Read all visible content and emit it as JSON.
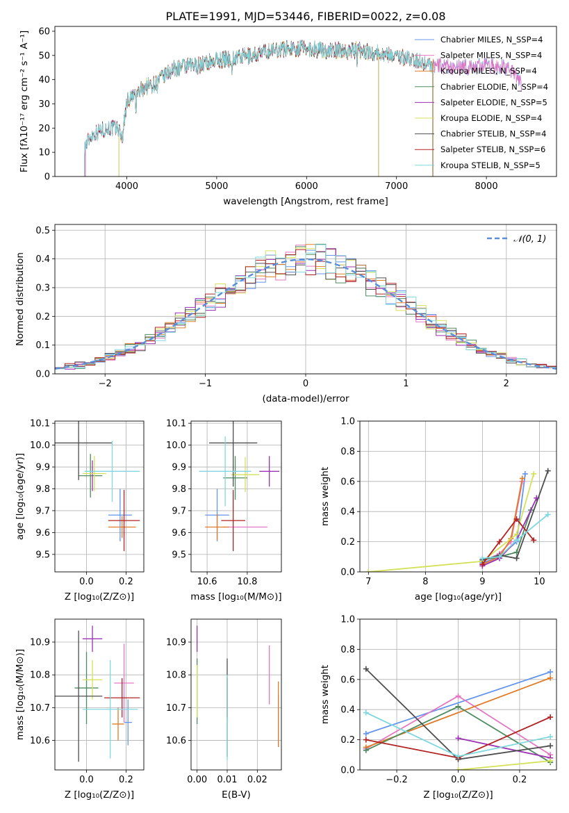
{
  "figure_title": "PLATE=1991, MJD=53446, FIBERID=0022, z=0.08",
  "model_colors": [
    "#6495ED",
    "#E377C2",
    "#E07B27",
    "#4E8B5F",
    "#9B30B5",
    "#D4E157",
    "#4D4D4D",
    "#B22222",
    "#7FD8DE"
  ],
  "chart_data": [
    {
      "id": "spectrum",
      "type": "line",
      "title": "PLATE=1991, MJD=53446, FIBERID=0022, z=0.08",
      "xlabel": "wavelength [Angstrom, rest frame]",
      "ylabel": "Flux [fλ10⁻¹⁷ erg cm⁻² s⁻¹ A⁻¹]",
      "xlim": [
        3200,
        8780
      ],
      "ylim": [
        0,
        62
      ],
      "xticks": [
        "4000",
        "5000",
        "6000",
        "7000",
        "8000"
      ],
      "yticks": [
        "0",
        "10",
        "20",
        "30",
        "40",
        "50",
        "60"
      ],
      "xtick_values": [
        4000,
        5000,
        6000,
        7000,
        8000
      ],
      "ytick_values": [
        0,
        10,
        20,
        30,
        40,
        50,
        60
      ],
      "grid": false,
      "legend_position": "top-right",
      "continuum": {
        "wavelength": [
          3530,
          3600,
          3700,
          3800,
          3900,
          3950,
          4000,
          4100,
          4200,
          4300,
          4400,
          4500,
          4600,
          4800,
          5000,
          5200,
          5400,
          5600,
          5800,
          6000,
          6200,
          6400,
          6600,
          6800,
          7000,
          7200,
          7400,
          7600,
          7800,
          8000,
          8200,
          8300,
          8390
        ],
        "flux": [
          12,
          17,
          19,
          20,
          20,
          16,
          31,
          34,
          37,
          38,
          41,
          44,
          45,
          46,
          48,
          49,
          50,
          52,
          53,
          53,
          52,
          52,
          52,
          51,
          50,
          48,
          46,
          45,
          45,
          46,
          45,
          43,
          38
        ]
      },
      "series": [
        {
          "name": "Chabrier MILES, N_SSP=4",
          "start": 3540,
          "end": 8390
        },
        {
          "name": "Salpeter MILES, N_SSP=4",
          "start": 3540,
          "end": 8390
        },
        {
          "name": "Kroupa MILES, N_SSP=4",
          "start": 3910,
          "end": 7410
        },
        {
          "name": "Chabrier ELODIE, N_SSP=4",
          "start": 3910,
          "end": 6800
        },
        {
          "name": "Salpeter ELODIE, N_SSP=5",
          "start": 3910,
          "end": 6800
        },
        {
          "name": "Kroupa ELODIE, N_SSP=4",
          "start": 3910,
          "end": 6800
        },
        {
          "name": "Chabrier STELIB, N_SSP=4",
          "start": 3530,
          "end": 7400
        },
        {
          "name": "Salpeter STELIB, N_SSP=6",
          "start": 3530,
          "end": 7400
        },
        {
          "name": "Kroupa STELIB, N_SSP=5",
          "start": 3530,
          "end": 7400
        }
      ]
    },
    {
      "id": "residuals",
      "type": "line",
      "xlabel": "(data-model)/error",
      "ylabel": "Normed distribution",
      "xlim": [
        -2.5,
        2.5
      ],
      "ylim": [
        0,
        0.52
      ],
      "xticks": [
        "−2",
        "−1",
        "0",
        "1",
        "2"
      ],
      "yticks": [
        "0.0",
        "0.1",
        "0.2",
        "0.3",
        "0.4",
        "0.5"
      ],
      "xtick_values": [
        -2,
        -1,
        0,
        1,
        2
      ],
      "ytick_values": [
        0,
        0.1,
        0.2,
        0.3,
        0.4,
        0.5
      ],
      "grid": true,
      "legend_position": "top-right",
      "legend": "𝒩(0, 1)",
      "bin_width": 0.1,
      "series_count": 9
    },
    {
      "id": "age-vs-Z",
      "type": "scatter",
      "xlabel": "Z [log₁₀(Z/Z⊙)]",
      "ylabel": "age  [log₁₀(age/yr)]",
      "xlim": [
        -0.16,
        0.29
      ],
      "ylim": [
        9.42,
        10.11
      ],
      "xticks": [
        "0.0",
        "0.2"
      ],
      "yticks": [
        "9.5",
        "9.6",
        "9.7",
        "9.8",
        "9.9",
        "10.0",
        "10.1"
      ],
      "xtick_values": [
        0,
        0.2
      ],
      "ytick_values": [
        9.5,
        9.6,
        9.7,
        9.8,
        9.9,
        10.0,
        10.1
      ],
      "grid": true,
      "points": [
        {
          "series": 0,
          "x": 0.17,
          "xerr": 0.06,
          "y": 9.68,
          "yerr": 0.12
        },
        {
          "series": 1,
          "x": 0.18,
          "xerr": 0.0,
          "y": 9.62,
          "yerr": 0.0
        },
        {
          "series": 2,
          "x": 0.18,
          "xerr": 0.07,
          "y": 9.625,
          "yerr": 0.05
        },
        {
          "series": 3,
          "x": 0.02,
          "xerr": 0.06,
          "y": 9.86,
          "yerr": 0.1
        },
        {
          "series": 4,
          "x": 0.03,
          "xerr": 0.0,
          "y": 9.86,
          "yerr": 0.07
        },
        {
          "series": 5,
          "x": 0.04,
          "xerr": 0.06,
          "y": 9.87,
          "yerr": 0.08
        },
        {
          "series": 6,
          "x": -0.04,
          "xerr": 0.17,
          "y": 10.01,
          "yerr": 0.17
        },
        {
          "series": 7,
          "x": 0.19,
          "xerr": 0.08,
          "y": 9.655,
          "yerr": 0.14
        },
        {
          "series": 8,
          "x": 0.13,
          "xerr": 0.14,
          "y": 9.88,
          "yerr": 0.14
        }
      ]
    },
    {
      "id": "age-vs-mass",
      "type": "scatter",
      "xlabel": "mass [log₁₀(M/M⊙)]",
      "ylabel": "",
      "xlim": [
        10.52,
        10.97
      ],
      "ylim": [
        9.42,
        10.11
      ],
      "xticks": [
        "10.6",
        "10.8"
      ],
      "yticks": [
        "9.5",
        "9.6",
        "9.7",
        "9.8",
        "9.9",
        "10.0",
        "10.1"
      ],
      "xtick_values": [
        10.6,
        10.8
      ],
      "ytick_values": [
        9.5,
        9.6,
        9.7,
        9.8,
        9.9,
        10.0,
        10.1
      ],
      "grid": true,
      "points": [
        {
          "series": 0,
          "x": 10.65,
          "xerr": 0.06,
          "y": 9.68,
          "yerr": 0.12
        },
        {
          "series": 1,
          "x": 10.79,
          "xerr": 0.11,
          "y": 9.625,
          "yerr": 0.0
        },
        {
          "series": 2,
          "x": 10.65,
          "xerr": 0.06,
          "y": 9.625,
          "yerr": 0.06
        },
        {
          "series": 3,
          "x": 10.74,
          "xerr": 0.06,
          "y": 9.85,
          "yerr": 0.1
        },
        {
          "series": 4,
          "x": 10.91,
          "xerr": 0.05,
          "y": 9.88,
          "yerr": 0.07
        },
        {
          "series": 5,
          "x": 10.79,
          "xerr": 0.07,
          "y": 9.865,
          "yerr": 0.08
        },
        {
          "series": 6,
          "x": 10.73,
          "xerr": 0.12,
          "y": 10.01,
          "yerr": 0.2
        },
        {
          "series": 7,
          "x": 10.73,
          "xerr": 0.06,
          "y": 9.655,
          "yerr": 0.14
        },
        {
          "series": 8,
          "x": 10.69,
          "xerr": 0.13,
          "y": 9.88,
          "yerr": 0.16
        }
      ]
    },
    {
      "id": "weight-vs-age",
      "type": "line",
      "xlabel": "age  [log₁₀(age/yr)]",
      "ylabel": "mass weight",
      "xlim": [
        6.85,
        10.3
      ],
      "ylim": [
        0,
        1
      ],
      "xticks": [
        "7",
        "8",
        "9",
        "10"
      ],
      "yticks": [
        "0.0",
        "0.2",
        "0.4",
        "0.6",
        "0.8",
        "1.0"
      ],
      "xtick_values": [
        7,
        8,
        9,
        10
      ],
      "ytick_values": [
        0,
        0.2,
        0.4,
        0.6,
        0.8,
        1.0
      ],
      "grid": true,
      "series": [
        {
          "index": 0,
          "x": [
            9.0,
            9.3,
            9.6,
            9.75
          ],
          "y": [
            0.06,
            0.1,
            0.2,
            0.65
          ]
        },
        {
          "index": 1,
          "x": [
            9.0,
            9.3,
            9.5,
            9.7
          ],
          "y": [
            0.07,
            0.12,
            0.2,
            0.6
          ]
        },
        {
          "index": 2,
          "x": [
            9.0,
            9.3,
            9.5,
            9.7
          ],
          "y": [
            0.05,
            0.1,
            0.22,
            0.62
          ]
        },
        {
          "index": 3,
          "x": [
            9.0,
            9.3,
            9.6,
            9.85
          ],
          "y": [
            0.08,
            0.1,
            0.13,
            0.41
          ]
        },
        {
          "index": 4,
          "x": [
            9.0,
            9.3,
            9.6,
            9.95
          ],
          "y": [
            0.04,
            0.09,
            0.21,
            0.49
          ]
        },
        {
          "index": 5,
          "x": [
            7.0,
            9.0,
            9.6,
            9.9
          ],
          "y": [
            0.0,
            0.07,
            0.25,
            0.65
          ]
        },
        {
          "index": 6,
          "x": [
            9.0,
            9.3,
            9.6,
            10.15
          ],
          "y": [
            0.08,
            0.11,
            0.09,
            0.67
          ]
        },
        {
          "index": 7,
          "x": [
            9.0,
            9.3,
            9.6,
            9.9
          ],
          "y": [
            0.05,
            0.2,
            0.35,
            0.21
          ]
        },
        {
          "index": 8,
          "x": [
            9.0,
            9.3,
            9.6,
            10.15
          ],
          "y": [
            0.09,
            0.1,
            0.21,
            0.38
          ]
        }
      ]
    },
    {
      "id": "mass-vs-Z",
      "type": "scatter",
      "xlabel": "Z [log₁₀(Z/Z⊙)]",
      "ylabel": "mass [log₁₀(M/M⊙)]",
      "xlim": [
        -0.16,
        0.29
      ],
      "ylim": [
        10.51,
        10.97
      ],
      "xticks": [
        "0.0",
        "0.2"
      ],
      "yticks": [
        "10.6",
        "10.7",
        "10.8",
        "10.9"
      ],
      "xtick_values": [
        0,
        0.2
      ],
      "ytick_values": [
        10.6,
        10.7,
        10.8,
        10.9
      ],
      "grid": true,
      "points": [
        {
          "series": 0,
          "x": 0.21,
          "xerr": 0.02,
          "y": 10.655,
          "yerr": 0.07
        },
        {
          "series": 1,
          "x": 0.19,
          "xerr": 0.05,
          "y": 10.775,
          "yerr": 0.12
        },
        {
          "series": 2,
          "x": 0.16,
          "xerr": 0.03,
          "y": 10.65,
          "yerr": 0.05
        },
        {
          "series": 3,
          "x": 0.0,
          "xerr": 0.06,
          "y": 10.76,
          "yerr": 0.11
        },
        {
          "series": 4,
          "x": 0.03,
          "xerr": 0.05,
          "y": 10.91,
          "yerr": 0.04
        },
        {
          "series": 5,
          "x": 0.03,
          "xerr": 0.05,
          "y": 10.785,
          "yerr": 0.06
        },
        {
          "series": 6,
          "x": -0.04,
          "xerr": 0.12,
          "y": 10.735,
          "yerr": 0.2
        },
        {
          "series": 7,
          "x": 0.18,
          "xerr": 0.09,
          "y": 10.73,
          "yerr": 0.06
        },
        {
          "series": 8,
          "x": 0.12,
          "xerr": 0.14,
          "y": 10.695,
          "yerr": 0.15
        }
      ]
    },
    {
      "id": "mass-vs-ebv",
      "type": "scatter",
      "xlabel": "E(B-V)",
      "ylabel": "",
      "xlim": [
        -0.002,
        0.028
      ],
      "ylim": [
        10.51,
        10.97
      ],
      "xticks": [
        "0.00",
        "0.01",
        "0.02"
      ],
      "yticks": [
        "10.6",
        "10.7",
        "10.8",
        "10.9"
      ],
      "xtick_values": [
        0,
        0.01,
        0.02
      ],
      "ytick_values": [
        10.6,
        10.7,
        10.8,
        10.9
      ],
      "grid": true,
      "points": [
        {
          "series": 0,
          "x": 0.027,
          "xerr": 0.0,
          "y": 10.66,
          "yerr": 0.08
        },
        {
          "series": 1,
          "x": 0.024,
          "xerr": 0.0,
          "y": 10.8,
          "yerr": 0.09
        },
        {
          "series": 2,
          "x": 0.027,
          "xerr": 0.0,
          "y": 10.68,
          "yerr": 0.1
        },
        {
          "series": 3,
          "x": 0.0,
          "xerr": 0.0,
          "y": 10.75,
          "yerr": 0.1
        },
        {
          "series": 4,
          "x": 0.0,
          "xerr": 0.0,
          "y": 10.91,
          "yerr": 0.04
        },
        {
          "series": 5,
          "x": 0.0,
          "xerr": 0.0,
          "y": 10.75,
          "yerr": 0.08
        },
        {
          "series": 6,
          "x": 0.01,
          "xerr": 0.0,
          "y": 10.7,
          "yerr": 0.15
        },
        {
          "series": 7,
          "x": 0.01,
          "xerr": 0.0,
          "y": 10.73,
          "yerr": 0.06
        },
        {
          "series": 8,
          "x": 0.01,
          "xerr": 0.0,
          "y": 10.67,
          "yerr": 0.13
        }
      ]
    },
    {
      "id": "weight-vs-Z",
      "type": "line",
      "xlabel": "Z [log₁₀(Z/Z⊙)]",
      "ylabel": "mass weight",
      "xlim": [
        -0.32,
        0.32
      ],
      "ylim": [
        0,
        1
      ],
      "xticks": [
        "−0.2",
        "0.0",
        "0.2"
      ],
      "yticks": [
        "0.0",
        "0.2",
        "0.4",
        "0.6",
        "0.8",
        "1.0"
      ],
      "xtick_values": [
        -0.2,
        0,
        0.2
      ],
      "ytick_values": [
        0,
        0.2,
        0.4,
        0.6,
        0.8,
        1.0
      ],
      "grid": true,
      "series": [
        {
          "index": 0,
          "x": [
            -0.3,
            0.3
          ],
          "y": [
            0.24,
            0.65
          ]
        },
        {
          "index": 1,
          "x": [
            -0.3,
            0.0,
            0.3
          ],
          "y": [
            0.14,
            0.49,
            0.1
          ]
        },
        {
          "index": 2,
          "x": [
            -0.3,
            0.3
          ],
          "y": [
            0.15,
            0.61
          ]
        },
        {
          "index": 3,
          "x": [
            -0.3,
            0.0,
            0.3
          ],
          "y": [
            0.13,
            0.42,
            0.05
          ]
        },
        {
          "index": 4,
          "x": [
            0.0,
            0.3
          ],
          "y": [
            0.21,
            0.08
          ]
        },
        {
          "index": 5,
          "x": [
            0.0,
            0.3
          ],
          "y": [
            0.0,
            0.06
          ]
        },
        {
          "index": 6,
          "x": [
            -0.3,
            0.0,
            0.3
          ],
          "y": [
            0.67,
            0.07,
            0.16
          ]
        },
        {
          "index": 7,
          "x": [
            -0.3,
            0.0,
            0.3
          ],
          "y": [
            0.2,
            0.08,
            0.35
          ]
        },
        {
          "index": 8,
          "x": [
            -0.3,
            0.0,
            0.3
          ],
          "y": [
            0.38,
            0.09,
            0.22
          ]
        }
      ]
    }
  ]
}
